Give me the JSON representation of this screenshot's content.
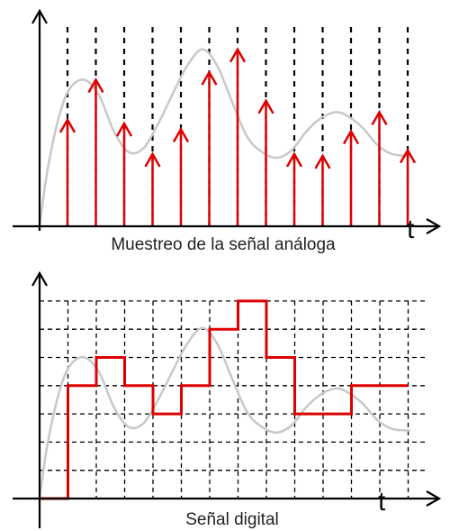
{
  "top_panel": {
    "axis_variable": "t",
    "caption": "Muestreo de la señal análoga",
    "sample_count": 13,
    "sample_values": [
      0.56,
      0.77,
      0.54,
      0.38,
      0.51,
      0.81,
      0.93,
      0.66,
      0.38,
      0.37,
      0.5,
      0.6,
      0.4
    ]
  },
  "bottom_panel": {
    "axis_variable": "t",
    "caption": "Señal digital",
    "quantization_levels": 7,
    "step_levels": [
      0,
      4,
      5,
      4,
      3,
      4,
      6,
      7,
      5,
      3,
      3,
      4,
      4
    ]
  },
  "colors": {
    "analog_signal": "#c8c8c8",
    "samples": "#dd0000",
    "digital_signal": "#dd0000",
    "axes": "#000000",
    "grid": "#000000"
  }
}
